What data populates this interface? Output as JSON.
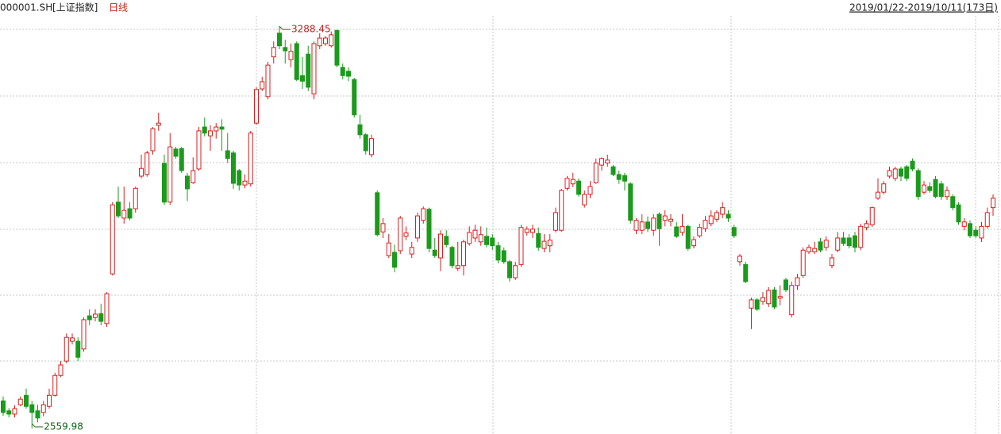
{
  "chart_data": {
    "type": "candlestick",
    "symbol": "000001.SH",
    "name": "[上证指数]",
    "period": "日线",
    "range": "2019/01/22-2019/10/11(173日)",
    "up_color": "#d81e1e",
    "down_color": "#1b9a1b",
    "ylim": [
      2550,
      3336
    ],
    "series": {
      "open": [
        2610,
        2592,
        2586,
        2603,
        2620,
        2603,
        2592,
        2589,
        2600,
        2620,
        2656,
        2682,
        2718,
        2718,
        2704,
        2764,
        2761,
        2768,
        2750,
        2840,
        2970,
        2941,
        2958,
        2958,
        3017,
        3020,
        3063,
        3109,
        3040,
        2970,
        3066,
        3067,
        3017,
        3005,
        3030,
        3106,
        3090,
        3099,
        3106,
        3063,
        3059,
        3027,
        3001,
        3003,
        3113,
        3175,
        3161,
        3233,
        3276,
        3250,
        3228,
        3257,
        3199,
        3238,
        3166,
        3253,
        3257,
        3253,
        3281,
        3214,
        3207,
        3192,
        3110,
        3092,
        3056,
        2987,
        2916,
        2873,
        2879,
        2882,
        2908,
        2876,
        2905,
        2937,
        2957,
        2883,
        2869,
        2908,
        2888,
        2850,
        2855,
        2895,
        2905,
        2898,
        2908,
        2905,
        2891,
        2882,
        2862,
        2833,
        2857,
        2915,
        2915,
        2913,
        2886,
        2891,
        2919,
        2919,
        2995,
        3003,
        3008,
        2965,
        2984,
        3005,
        3037,
        3041,
        3034,
        3020,
        3018,
        3003,
        2919,
        2919,
        2934,
        2919,
        2948,
        2937,
        2935,
        2925,
        2915,
        2926,
        2891,
        2909,
        2922,
        2931,
        2939,
        2948,
        2948,
        2924,
        2862,
        2857,
        2778,
        2793,
        2790,
        2786,
        2811,
        2796,
        2829,
        2766,
        2819,
        2837,
        2880,
        2880,
        2898,
        2888,
        2855,
        2883,
        2905,
        2905,
        2909,
        2888,
        2924,
        2929,
        2977,
        2988,
        3017,
        3013,
        3030,
        3034,
        3044,
        3027,
        2988,
        2998,
        3011,
        3003,
        2980,
        2980,
        2965,
        2926,
        2931,
        2919,
        2905,
        2926,
        2960
      ],
      "high": [
        2618,
        2597,
        2602,
        2618,
        2632,
        2610,
        2603,
        2610,
        2632,
        2661,
        2682,
        2732,
        2732,
        2725,
        2761,
        2776,
        2776,
        2786,
        2807,
        2970,
        2998,
        2998,
        2970,
        2998,
        3056,
        3063,
        3106,
        3132,
        3056,
        3095,
        3070,
        3070,
        3023,
        3051,
        3106,
        3123,
        3109,
        3113,
        3120,
        3095,
        3063,
        3030,
        3020,
        3099,
        3178,
        3197,
        3224,
        3261,
        3288.45,
        3264,
        3257,
        3261,
        3233,
        3253,
        3261,
        3276,
        3271,
        3279,
        3281,
        3221,
        3214,
        3195,
        3128,
        3095,
        3092,
        2991,
        2941,
        2912,
        2893,
        2945,
        2926,
        2898,
        2951,
        2962,
        2960,
        2905,
        2919,
        2919,
        2891,
        2898,
        2902,
        2926,
        2929,
        2926,
        2924,
        2912,
        2898,
        2888,
        2865,
        2862,
        2929,
        2926,
        2929,
        2924,
        2912,
        2912,
        2960,
        2994,
        3017,
        3023,
        3013,
        2991,
        3008,
        3049,
        3051,
        3056,
        3037,
        3027,
        3023,
        3006,
        2941,
        2948,
        2944,
        2948,
        2951,
        2955,
        2948,
        2934,
        2948,
        2929,
        2908,
        2931,
        2945,
        2955,
        2955,
        2970,
        2955,
        2929,
        2876,
        2862,
        2797,
        2796,
        2807,
        2816,
        2816,
        2819,
        2833,
        2826,
        2840,
        2888,
        2893,
        2898,
        2905,
        2908,
        2876,
        2916,
        2916,
        2912,
        2916,
        2931,
        2937,
        2962,
        3013,
        3008,
        3034,
        3034,
        3034,
        3037,
        3049,
        3031,
        3008,
        3006,
        3017,
        3008,
        2998,
        2984,
        2970,
        2941,
        2937,
        2926,
        2934,
        2960,
        2984
      ],
      "low": [
        2583,
        2580,
        2580,
        2600,
        2596,
        2559.98,
        2571,
        2582,
        2596,
        2618,
        2653,
        2678,
        2712,
        2682,
        2699,
        2747,
        2754,
        2747,
        2744,
        2837,
        2941,
        2931,
        2937,
        2951,
        3013,
        3016,
        3056,
        3099,
        2965,
        2965,
        3049,
        3023,
        2972,
        3003,
        3027,
        3089,
        3063,
        3085,
        3063,
        3041,
        2994,
        2991,
        2995,
        2998,
        3110,
        3171,
        3156,
        3221,
        3247,
        3221,
        3214,
        3189,
        3175,
        3171,
        3156,
        3247,
        3253,
        3250,
        3214,
        3192,
        3189,
        3123,
        3085,
        3056,
        3051,
        2908,
        2905,
        2869,
        2843,
        2876,
        2901,
        2869,
        2898,
        2931,
        2879,
        2869,
        2845,
        2888,
        2850,
        2845,
        2837,
        2891,
        2898,
        2891,
        2888,
        2883,
        2859,
        2858,
        2826,
        2829,
        2853,
        2909,
        2905,
        2882,
        2879,
        2879,
        2915,
        2916,
        2991,
        2997,
        2980,
        2960,
        2977,
        3003,
        3027,
        3034,
        3017,
        3003,
        2991,
        2931,
        2912,
        2912,
        2916,
        2909,
        2891,
        2926,
        2926,
        2905,
        2909,
        2882,
        2886,
        2905,
        2916,
        2926,
        2934,
        2941,
        2934,
        2905,
        2855,
        2823,
        2740,
        2773,
        2784,
        2780,
        2776,
        2783,
        2807,
        2761,
        2811,
        2833,
        2876,
        2876,
        2879,
        2882,
        2850,
        2879,
        2891,
        2886,
        2879,
        2883,
        2919,
        2925,
        2974,
        2984,
        3013,
        3008,
        3008,
        3008,
        3026,
        2974,
        2984,
        2987,
        2977,
        2974,
        2974,
        2955,
        2929,
        2919,
        2905,
        2905,
        2898,
        2922,
        2945
      ],
      "close": [
        2589,
        2586,
        2596,
        2613,
        2600,
        2589,
        2579,
        2603,
        2620,
        2656,
        2675,
        2725,
        2724,
        2689,
        2757,
        2757,
        2767,
        2754,
        2804,
        2965,
        2945,
        2955,
        2941,
        2995,
        3031,
        3059,
        3103,
        3113,
        2970,
        3070,
        3053,
        3027,
        2994,
        3027,
        3099,
        3095,
        3099,
        3106,
        3102,
        3049,
        3004,
        3001,
        3008,
        3095,
        3174,
        3188,
        3218,
        3250,
        3253,
        3244,
        3243,
        3192,
        3189,
        3178,
        3257,
        3267,
        3267,
        3273,
        3218,
        3199,
        3198,
        3128,
        3092,
        3063,
        3085,
        2911,
        2931,
        2896,
        2852,
        2941,
        2914,
        2888,
        2945,
        2958,
        2886,
        2873,
        2912,
        2893,
        2855,
        2855,
        2898,
        2915,
        2919,
        2911,
        2893,
        2891,
        2865,
        2862,
        2833,
        2855,
        2924,
        2921,
        2921,
        2888,
        2899,
        2901,
        2951,
        2991,
        3013,
        3011,
        2984,
        2984,
        2998,
        3041,
        3049,
        3046,
        3020,
        3011,
        3008,
        2937,
        2937,
        2934,
        2922,
        2941,
        2922,
        2945,
        2939,
        2908,
        2926,
        2886,
        2902,
        2924,
        2937,
        2945,
        2951,
        2960,
        2941,
        2909,
        2872,
        2826,
        2793,
        2776,
        2797,
        2810,
        2780,
        2799,
        2811,
        2819,
        2833,
        2883,
        2888,
        2886,
        2883,
        2901,
        2869,
        2905,
        2895,
        2891,
        2888,
        2926,
        2931,
        2960,
        2988,
        3003,
        3027,
        3030,
        3017,
        3013,
        3030,
        2980,
        3001,
        2991,
        2980,
        2980,
        2991,
        2960,
        2934,
        2934,
        2909,
        2909,
        2926,
        2951,
        2977
      ]
    }
  }
}
